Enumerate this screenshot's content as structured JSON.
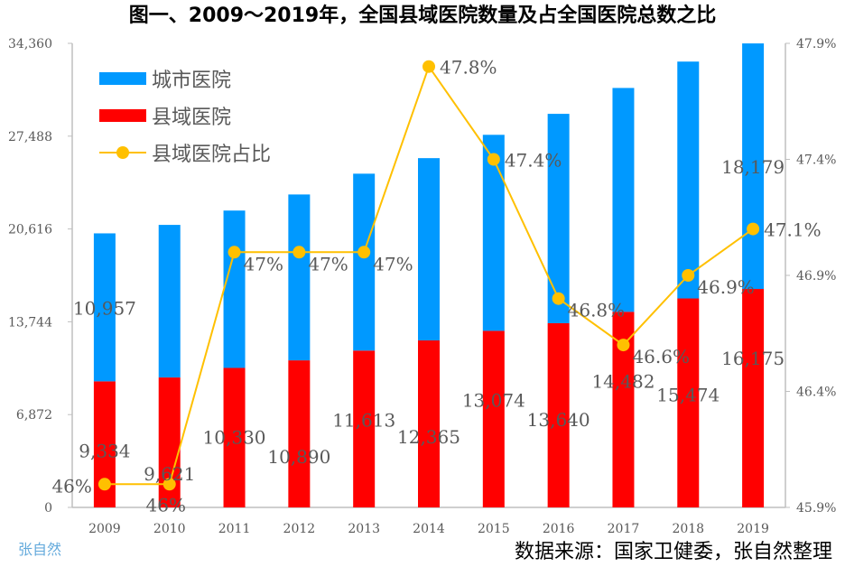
{
  "chart_data": {
    "type": "bar",
    "title": "图一、2009～2019年，全国县域医院数量及占全国医院总数之比",
    "categories": [
      "2009",
      "2010",
      "2011",
      "2012",
      "2013",
      "2014",
      "2015",
      "2016",
      "2017",
      "2018",
      "2019"
    ],
    "series": [
      {
        "name": "县域医院",
        "kind": "bar",
        "stack": "total",
        "color": "#ff0000",
        "values": [
          9334,
          9621,
          10330,
          10890,
          11613,
          12365,
          13074,
          13640,
          14482,
          15474,
          16175
        ],
        "labels": [
          "9,334",
          "9,621",
          "10,330",
          "10,890",
          "11,613",
          "12,365",
          "13,074",
          "13,640",
          "14,482",
          "15,474",
          "16,175"
        ]
      },
      {
        "name": "城市医院",
        "kind": "bar",
        "stack": "total",
        "color": "#0099ff",
        "values": [
          10957,
          11297,
          11649,
          12280,
          13096,
          13495,
          14513,
          15500,
          16574,
          17535,
          18179
        ],
        "labels": [
          "10,957",
          null,
          null,
          null,
          null,
          null,
          null,
          null,
          null,
          null,
          "18,179"
        ]
      },
      {
        "name": "县域医院占比",
        "kind": "line",
        "axis": "right",
        "color": "#ffc000",
        "values": [
          46.0,
          46.0,
          47.0,
          47.0,
          47.0,
          47.8,
          47.4,
          46.8,
          46.6,
          46.9,
          47.1
        ],
        "labels": [
          "46%",
          "46%",
          "47%",
          "47%",
          "47%",
          "47.8%",
          "47.4%",
          "46.8%",
          "46.6%",
          "46.9%",
          "47.1%"
        ]
      }
    ],
    "yaxis_left": {
      "range": [
        0,
        34360
      ],
      "ticks": [
        "0",
        "6,872",
        "13,744",
        "20,616",
        "27,488",
        "34,360"
      ],
      "tick_values": [
        0,
        6872,
        13744,
        20616,
        27488,
        34360
      ]
    },
    "yaxis_right": {
      "range": [
        45.9,
        47.9
      ],
      "ticks": [
        "45.9%",
        "46.4%",
        "46.9%",
        "47.4%",
        "47.9%"
      ],
      "tick_values": [
        45.9,
        46.4,
        46.9,
        47.4,
        47.9
      ]
    },
    "legend": {
      "placement": "top-left",
      "order": [
        "城市医院",
        "县域医院",
        "县域医院占比"
      ]
    },
    "grid": false,
    "source": "数据来源：国家卫健委，张自然整理",
    "watermark": "张自然"
  }
}
